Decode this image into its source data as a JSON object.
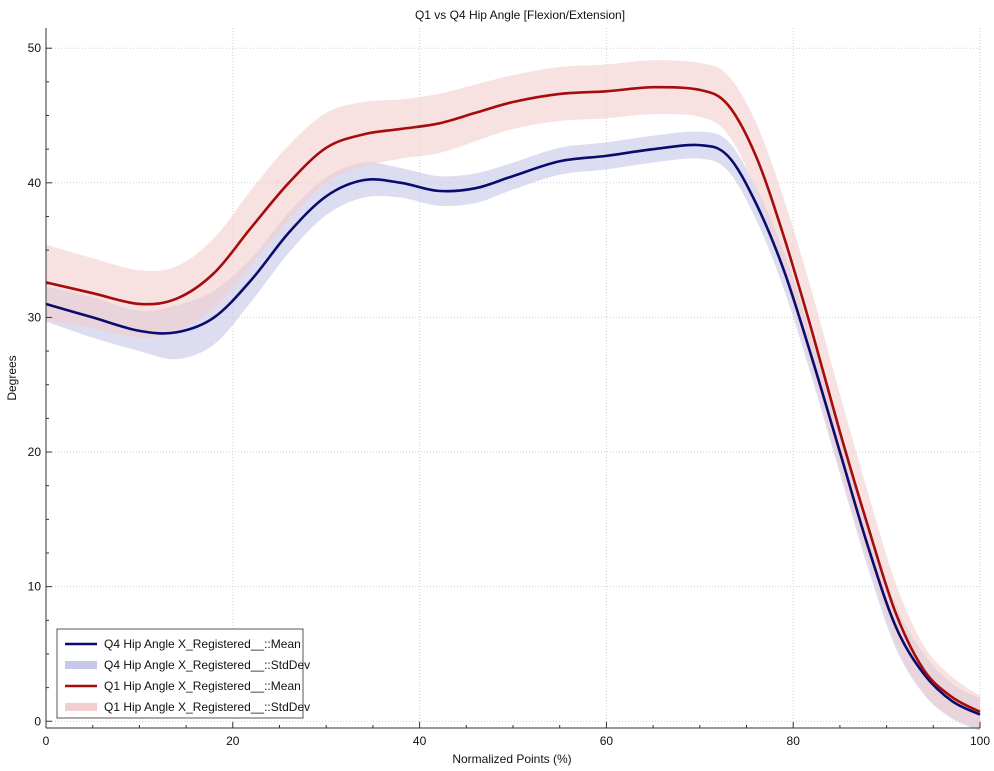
{
  "chart_data": {
    "type": "line",
    "title": "Q1 vs Q4 Hip Angle [Flexion/Extension]",
    "xlabel": "Normalized Points (%)",
    "ylabel": "Degrees",
    "xlim": [
      0,
      100
    ],
    "ylim": [
      -0.5,
      51.5
    ],
    "xticks": [
      0,
      20,
      40,
      60,
      80,
      100
    ],
    "yticks": [
      0,
      10,
      20,
      30,
      40,
      50
    ],
    "grid": true,
    "legend_position": "bottom-left",
    "x": [
      0,
      5,
      10,
      14,
      18,
      22,
      26,
      30,
      34,
      38,
      42,
      46,
      50,
      55,
      60,
      65,
      70,
      73,
      76,
      79,
      82,
      85,
      88,
      91,
      94,
      97,
      100
    ],
    "series": [
      {
        "name": "Q4 Hip Angle X_Registered__::Mean",
        "kind": "mean",
        "color": "#0b0b6e",
        "band_color": "#c8c8e8",
        "mean": [
          31.0,
          30.0,
          29.0,
          28.9,
          30.0,
          32.8,
          36.3,
          39.0,
          40.2,
          40.0,
          39.4,
          39.6,
          40.5,
          41.6,
          42.0,
          42.5,
          42.8,
          42.0,
          38.5,
          33.5,
          27.0,
          20.0,
          13.0,
          7.0,
          3.5,
          1.5,
          0.5
        ],
        "std": [
          1.3,
          1.5,
          1.5,
          2.0,
          2.0,
          1.6,
          1.5,
          1.4,
          1.3,
          1.1,
          1.1,
          1.1,
          1.0,
          1.0,
          1.0,
          1.0,
          1.0,
          1.1,
          1.2,
          1.4,
          1.5,
          1.6,
          1.6,
          1.6,
          1.5,
          1.3,
          1.2
        ]
      },
      {
        "name": "Q4 Hip Angle X_Registered__::StdDev",
        "kind": "std",
        "color": "#c8c8e8"
      },
      {
        "name": "Q1 Hip Angle X_Registered__::Mean",
        "kind": "mean",
        "color": "#a50c0c",
        "band_color": "#f2cfcf",
        "mean": [
          32.6,
          31.8,
          31.0,
          31.4,
          33.3,
          36.7,
          40.0,
          42.6,
          43.6,
          44.0,
          44.4,
          45.2,
          46.0,
          46.6,
          46.8,
          47.1,
          46.9,
          45.8,
          42.0,
          36.0,
          29.0,
          21.5,
          14.5,
          8.0,
          3.8,
          1.8,
          0.7
        ],
        "std": [
          2.8,
          2.6,
          2.5,
          2.4,
          2.6,
          2.8,
          2.8,
          2.6,
          2.4,
          2.2,
          2.2,
          2.1,
          2.0,
          2.0,
          2.0,
          2.0,
          2.0,
          2.2,
          2.5,
          2.8,
          2.9,
          2.8,
          2.5,
          2.2,
          1.8,
          1.5,
          1.2
        ]
      },
      {
        "name": "Q1 Hip Angle X_Registered__::StdDev",
        "kind": "std",
        "color": "#f2cfcf"
      }
    ]
  }
}
